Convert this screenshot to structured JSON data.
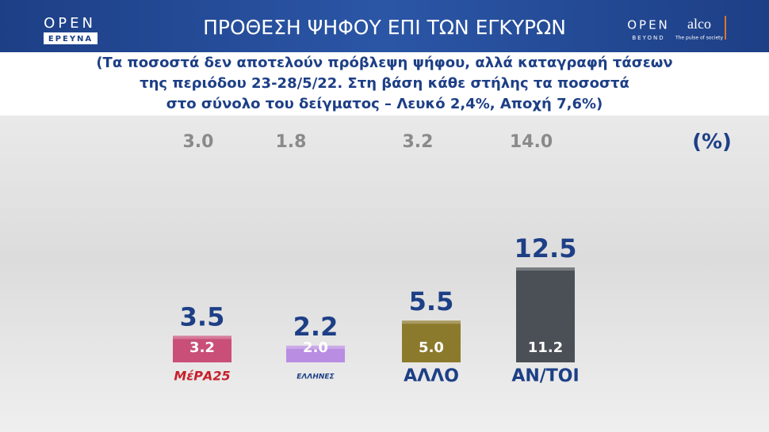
{
  "branding": {
    "left_logo": "OPEN",
    "left_logo_sub": "ΕΡΕΥΝΑ",
    "right_logo": "OPEN",
    "right_logo_sub": "BEYOND",
    "partner": "alco",
    "partner_sub": "The pulse of society"
  },
  "chart_data": {
    "type": "bar",
    "title": "ΠΡΟΘΕΣΗ ΨΗΦΟΥ ΕΠΙ ΤΩΝ ΕΓΚΥΡΩΝ",
    "subtitle": [
      "(Τα ποσοστά δεν αποτελούν πρόβλεψη ψήφου, αλλά καταγραφή τάσεων",
      "της περιόδου 23-28/5/22. Στη βάση κάθε στήλης τα ποσοστά",
      "στο σύνολο του δείγματος – Λευκό 2,4%, Αποχή 7,6%)"
    ],
    "unit_label": "(%)",
    "categories": [
      "ΜέΡΑ25",
      "ΕΛΛΗΝΕΣ",
      "ΑΛΛΟ",
      "ΑΝ/ΤΟΙ"
    ],
    "reference_values": [
      3.0,
      1.8,
      3.2,
      14.0
    ],
    "reference_labels": [
      "3.0",
      "1.8",
      "3.2",
      "14.0"
    ],
    "series": [
      {
        "values": [
          3.5,
          2.2,
          5.5,
          12.5
        ],
        "colors": [
          "#c94f78",
          "#b98de2",
          "#8c7a2c",
          "#4b5056"
        ]
      },
      {
        "values": [
          3.2,
          2.0,
          5.0,
          11.2
        ],
        "value_labels": [
          "3.2",
          "2.0",
          "5.0",
          "11.2"
        ]
      }
    ]
  }
}
